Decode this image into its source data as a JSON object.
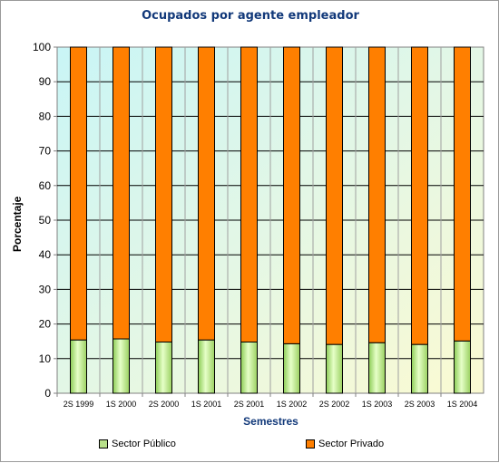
{
  "chart_data": {
    "type": "bar",
    "stacked": true,
    "title": "Ocupados por agente empleador",
    "xlabel": "Semestres",
    "ylabel": "Porcentaje",
    "ylim": [
      0,
      100
    ],
    "yticks": [
      0,
      10,
      20,
      30,
      40,
      50,
      60,
      70,
      80,
      90,
      100
    ],
    "grid": true,
    "legend_position": "bottom",
    "categories": [
      "2S 1999",
      "1S 2000",
      "2S 2000",
      "1S 2001",
      "2S 2001",
      "1S 2002",
      "2S 2002",
      "1S 2003",
      "2S 2003",
      "1S 2004"
    ],
    "series": [
      {
        "name": "Sector Público",
        "color": "#b8e08a",
        "values": [
          15.4,
          15.7,
          14.8,
          15.4,
          14.8,
          14.3,
          14.1,
          14.6,
          14.1,
          15.1
        ]
      },
      {
        "name": "Sector Privado",
        "color": "#ff7f00",
        "values": [
          84.6,
          84.3,
          85.2,
          84.6,
          85.2,
          85.7,
          85.9,
          85.4,
          85.9,
          84.9
        ]
      }
    ]
  }
}
